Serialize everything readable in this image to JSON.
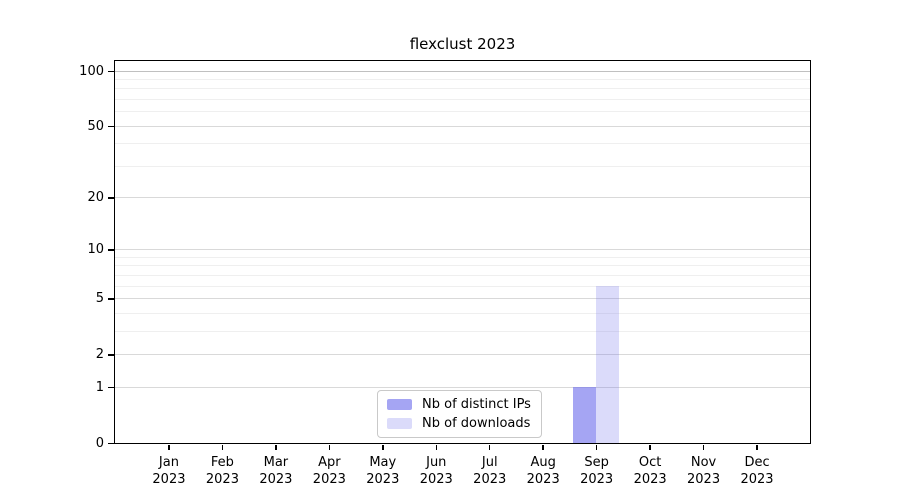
{
  "chart_data": {
    "type": "bar",
    "title": "flexclust 2023",
    "categories": [
      "Jan",
      "Feb",
      "Mar",
      "Apr",
      "May",
      "Jun",
      "Jul",
      "Aug",
      "Sep",
      "Oct",
      "Nov",
      "Dec"
    ],
    "year": "2023",
    "series": [
      {
        "name": "Nb of distinct IPs",
        "color": "rgba(110,110,235,0.62)",
        "values": [
          0,
          0,
          0,
          0,
          0,
          0,
          0,
          0,
          1,
          0,
          0,
          0
        ]
      },
      {
        "name": "Nb of downloads",
        "color": "rgba(110,110,235,0.25)",
        "values": [
          0,
          0,
          0,
          0,
          0,
          0,
          0,
          0,
          6,
          0,
          0,
          0
        ]
      }
    ],
    "yscale": "log1p",
    "ylim": [
      0,
      100
    ],
    "yticks": [
      0,
      1,
      2,
      5,
      10,
      20,
      50,
      100
    ],
    "minor_yticks": [
      3,
      4,
      6,
      7,
      8,
      9,
      30,
      40,
      60,
      70,
      80,
      90
    ],
    "xlabel": "",
    "ylabel": "",
    "grid": "horizontal",
    "legend_position": "inside-bottom-center",
    "colors": {
      "axis": "#000000",
      "major_grid": "#d9d9d9",
      "minor_grid": "#efefef",
      "top_grid": "#c0c0c0"
    }
  }
}
